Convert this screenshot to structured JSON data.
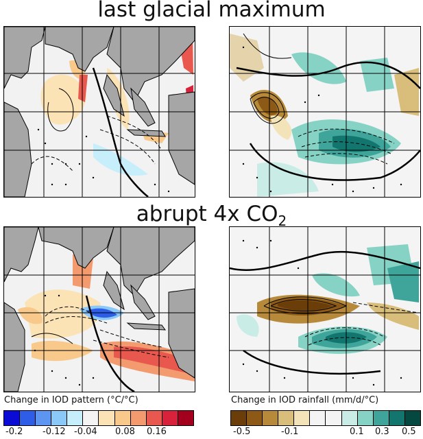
{
  "titles": {
    "top": "last glacial maximum",
    "middle_prefix": "abrupt 4x CO",
    "middle_subscript": "2"
  },
  "colorbars": {
    "left": {
      "label": "Change in IOD pattern (°C/°C)",
      "ticks": [
        "-0.2",
        "-0.12",
        "-0.04",
        "0.08",
        "0.16"
      ],
      "colors": [
        "#0b0bd6",
        "#2e5ee8",
        "#5c96f0",
        "#8ac8f7",
        "#c6eefb",
        "#f4f4f4",
        "#fbe3b6",
        "#f8c98b",
        "#f39a6f",
        "#e8584e",
        "#d8213a",
        "#a3001e"
      ]
    },
    "right": {
      "label": "Change in IOD rainfall (mm/d/°C)",
      "ticks": [
        "-0.5",
        "-0.1",
        "0.1",
        "0.3",
        "0.5"
      ],
      "colors": [
        "#6b3e09",
        "#8c5a16",
        "#b78a3b",
        "#d9bd7a",
        "#f2e4b8",
        "#f4f4f4",
        "#f4f4f4",
        "#c9ede6",
        "#86d2c5",
        "#3fa59a",
        "#12766f",
        "#04483f"
      ]
    }
  },
  "panel_labels": [
    "panel-lgm-sst",
    "panel-lgm-rain",
    "panel-4xco2-sst",
    "panel-4xco2-rain"
  ]
}
